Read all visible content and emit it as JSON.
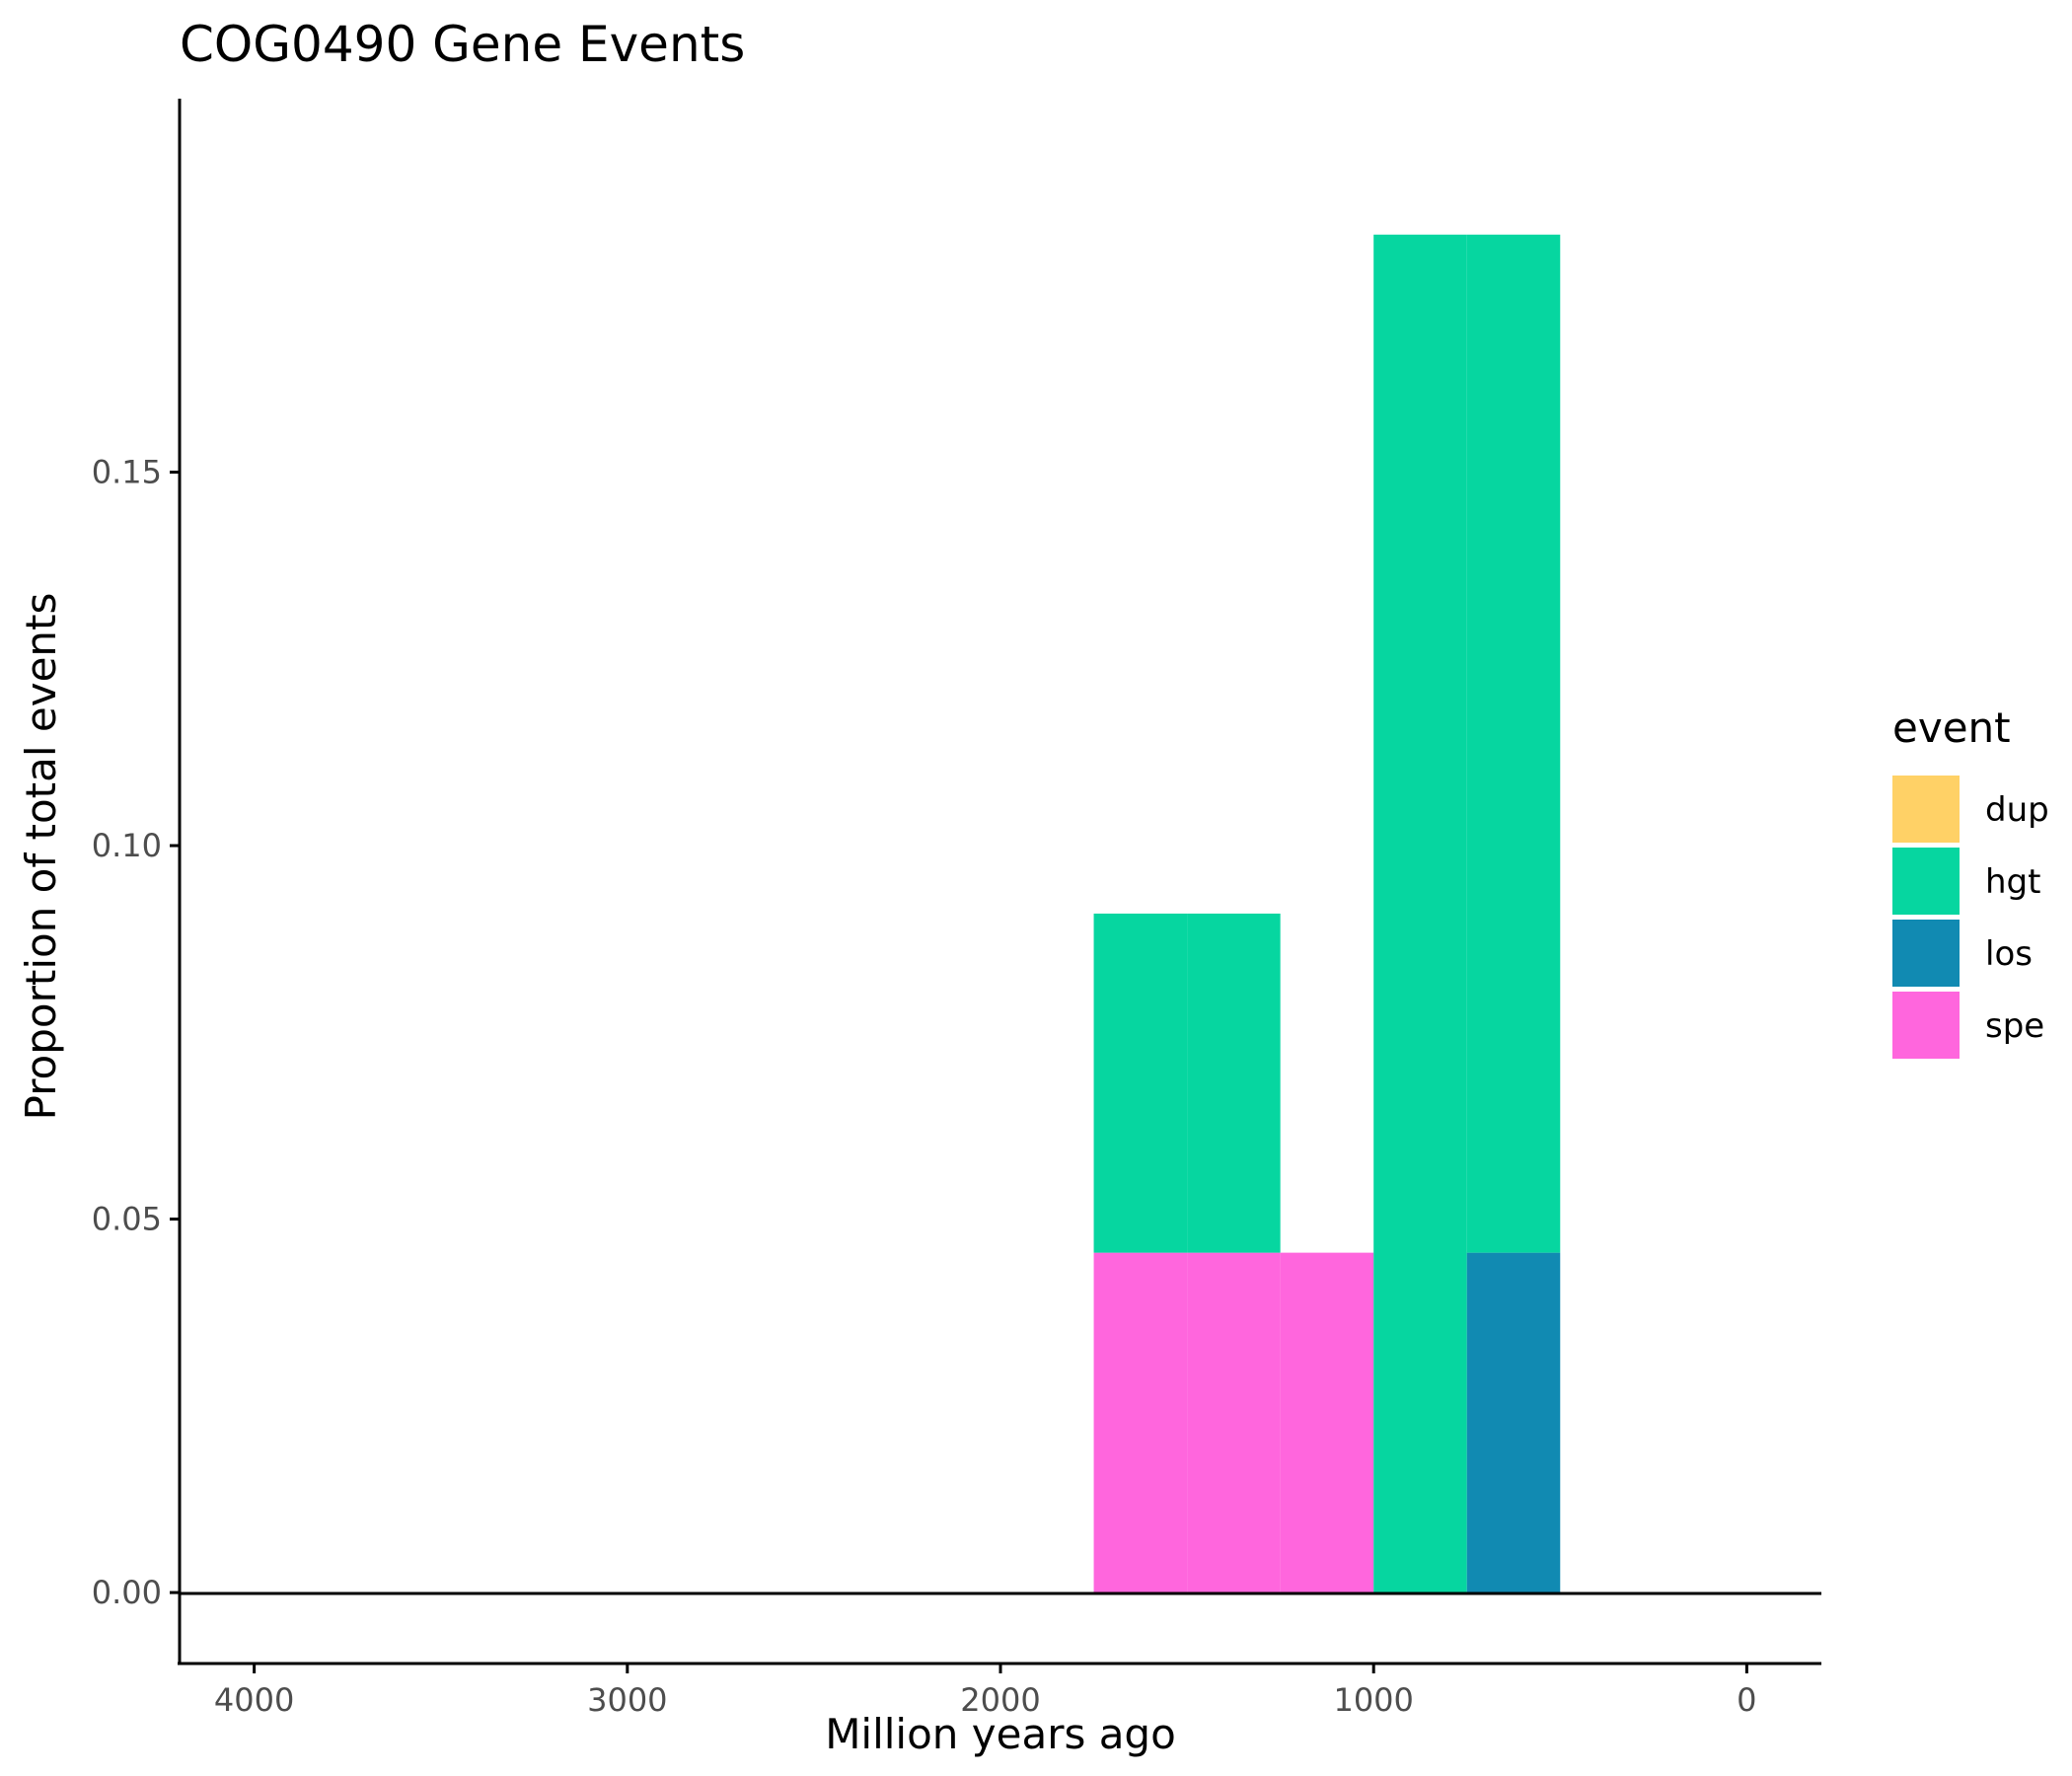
{
  "chart_data": {
    "type": "bar",
    "title": "COG0490 Gene Events",
    "xlabel": "Million years ago",
    "ylabel": "Proportion of total events",
    "x_reversed": true,
    "xlim": [
      4200,
      -200
    ],
    "ylim": [
      -0.0095,
      0.2
    ],
    "xticks": [
      4000,
      3000,
      2000,
      1000,
      0
    ],
    "yticks": [
      0.0,
      0.05,
      0.1,
      0.15
    ],
    "xtick_labels": [
      "4000",
      "3000",
      "2000",
      "1000",
      "0"
    ],
    "ytick_labels": [
      "0.00",
      "0.05",
      "0.10",
      "0.15"
    ],
    "grid": false,
    "bin_width": 250,
    "legend": {
      "title": "event",
      "position": "right",
      "entries": [
        {
          "label": "dup",
          "color": "#FFD166"
        },
        {
          "label": "hgt",
          "color": "#06D6A0"
        },
        {
          "label": "los",
          "color": "#118AB2"
        },
        {
          "label": "spe",
          "color": "#FF66DD"
        }
      ]
    },
    "bars": [
      {
        "x_start": 1750,
        "x_end": 1500,
        "series": "spe",
        "y0": 0,
        "y1": 0.0455
      },
      {
        "x_start": 1750,
        "x_end": 1500,
        "series": "hgt",
        "y0": 0.0455,
        "y1": 0.0909
      },
      {
        "x_start": 1500,
        "x_end": 1250,
        "series": "spe",
        "y0": 0,
        "y1": 0.0455
      },
      {
        "x_start": 1500,
        "x_end": 1250,
        "series": "hgt",
        "y0": 0.0455,
        "y1": 0.0909
      },
      {
        "x_start": 1250,
        "x_end": 1000,
        "series": "spe",
        "y0": 0,
        "y1": 0.0455
      },
      {
        "x_start": 1000,
        "x_end": 750,
        "series": "hgt",
        "y0": 0,
        "y1": 0.1818
      },
      {
        "x_start": 750,
        "x_end": 500,
        "series": "los",
        "y0": 0,
        "y1": 0.0455
      },
      {
        "x_start": 750,
        "x_end": 500,
        "series": "hgt",
        "y0": 0.0455,
        "y1": 0.1818
      }
    ]
  }
}
